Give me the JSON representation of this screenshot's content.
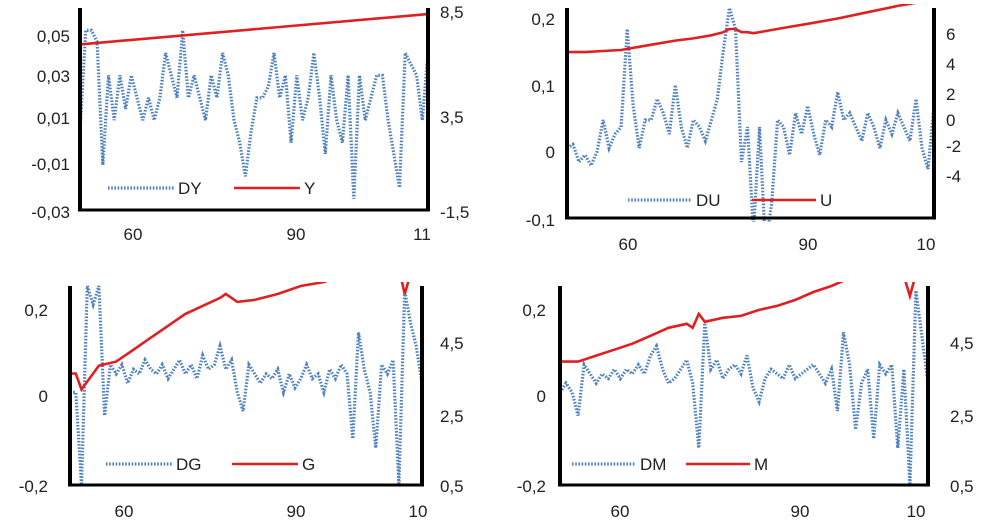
{
  "chart_data": [
    {
      "type": "line",
      "x_ticks": [
        "60",
        "90",
        "11"
      ],
      "x_range": [
        1950,
        2011
      ],
      "y_left_ticks": [
        "0,05",
        "0,03",
        "0,01",
        "-0,01",
        "-0,03"
      ],
      "y_left_range": [
        -0.03,
        0.06
      ],
      "y_right_ticks": [
        "8,5",
        "3,5",
        "-1,5"
      ],
      "y_right_range": [
        -1.5,
        8.5
      ],
      "legend": [
        "DY",
        "Y"
      ],
      "series": [
        {
          "name": "DY",
          "axis": "left",
          "style": "dotted",
          "color": "#4f81bd",
          "x": [
            1950,
            1951,
            1952,
            1953,
            1954,
            1955,
            1956,
            1957,
            1958,
            1959,
            1960,
            1961,
            1962,
            1963,
            1964,
            1965,
            1966,
            1967,
            1968,
            1969,
            1970,
            1971,
            1972,
            1973,
            1974,
            1975,
            1976,
            1977,
            1978,
            1979,
            1980,
            1981,
            1982,
            1983,
            1984,
            1985,
            1986,
            1987,
            1988,
            1989,
            1990,
            1991,
            1992,
            1993,
            1994,
            1995,
            1996,
            1997,
            1998,
            1999,
            2000,
            2001,
            2002,
            2003,
            2004,
            2005,
            2006,
            2007,
            2008,
            2009,
            2010,
            2011
          ],
          "y": [
            0.005,
            0.05,
            0.05,
            0.045,
            -0.01,
            0.03,
            0.01,
            0.03,
            0.015,
            0.03,
            0.02,
            0.01,
            0.02,
            0.01,
            0.02,
            0.04,
            0.03,
            0.02,
            0.05,
            0.02,
            0.03,
            0.02,
            0.01,
            0.03,
            0.02,
            0.04,
            0.03,
            0.01,
            0.0,
            -0.015,
            0.005,
            0.02,
            0.02,
            0.025,
            0.04,
            0.02,
            0.03,
            0.0,
            0.03,
            0.01,
            0.02,
            0.04,
            0.02,
            -0.005,
            0.03,
            0.01,
            0.0,
            0.03,
            -0.025,
            0.03,
            0.01,
            0.02,
            0.03,
            0.03,
            0.01,
            -0.005,
            -0.02,
            0.04,
            0.035,
            0.03,
            0.01,
            0.04
          ]
        },
        {
          "name": "Y",
          "axis": "right",
          "style": "solid",
          "color": "#e02020",
          "x": [
            1950,
            2011
          ],
          "y": [
            6.7,
            8.2
          ]
        }
      ]
    },
    {
      "type": "line",
      "x_ticks": [
        "60",
        "90",
        "10"
      ],
      "x_range": [
        1950,
        2011
      ],
      "y_left_ticks": [
        "0,2",
        "0,1",
        "0",
        "-0,1"
      ],
      "y_left_range": [
        -0.1,
        0.2
      ],
      "y_right_ticks": [
        "6",
        "4",
        "2",
        "0",
        "-2",
        "-4"
      ],
      "y_right_range": [
        -4,
        6
      ],
      "legend": [
        "DU",
        "U"
      ],
      "series": [
        {
          "name": "DU",
          "axis": "left",
          "style": "dotted",
          "color": "#4f81bd",
          "x": [
            1950,
            1951,
            1952,
            1953,
            1954,
            1955,
            1956,
            1957,
            1958,
            1959,
            1960,
            1961,
            1962,
            1963,
            1964,
            1965,
            1966,
            1967,
            1968,
            1969,
            1970,
            1971,
            1972,
            1973,
            1974,
            1975,
            1976,
            1977,
            1978,
            1979,
            1980,
            1981,
            1982,
            1983,
            1984,
            1985,
            1986,
            1987,
            1988,
            1989,
            1990,
            1991,
            1992,
            1993,
            1994,
            1995,
            1996,
            1997,
            1998,
            1999,
            2000,
            2001,
            2002,
            2003,
            2004,
            2005,
            2006,
            2007,
            2008,
            2009,
            2010,
            2011
          ],
          "y": [
            0.0,
            0.005,
            -0.02,
            -0.01,
            -0.025,
            -0.005,
            0.04,
            0.0,
            0.02,
            0.03,
            0.17,
            0.06,
            0.0,
            0.04,
            0.04,
            0.07,
            0.05,
            0.02,
            0.09,
            0.03,
            0.0,
            0.04,
            0.03,
            0.01,
            0.04,
            0.07,
            0.14,
            0.2,
            0.17,
            -0.02,
            0.03,
            -0.12,
            0.03,
            -0.14,
            -0.08,
            0.04,
            0.03,
            -0.01,
            0.05,
            0.02,
            0.06,
            0.02,
            -0.01,
            0.04,
            0.03,
            0.08,
            0.04,
            0.05,
            0.03,
            0.01,
            0.05,
            0.03,
            0.0,
            0.04,
            0.02,
            0.05,
            0.03,
            0.01,
            0.07,
            0.0,
            -0.03,
            0.06
          ]
        },
        {
          "name": "U",
          "axis": "right",
          "style": "solid",
          "color": "#e02020",
          "x": [
            1950,
            1953,
            1956,
            1959,
            1962,
            1965,
            1968,
            1971,
            1974,
            1976,
            1977,
            1978,
            1979,
            1980,
            1981,
            1983,
            1986,
            1990,
            1995,
            2000,
            2005,
            2011
          ],
          "y": [
            3.9,
            3.9,
            3.95,
            4.0,
            4.15,
            4.3,
            4.45,
            4.55,
            4.7,
            4.85,
            5.0,
            5.0,
            4.85,
            4.85,
            4.8,
            4.9,
            5.05,
            5.25,
            5.5,
            5.8,
            6.1,
            6.4
          ]
        }
      ]
    },
    {
      "type": "line",
      "x_ticks": [
        "60",
        "90",
        "10"
      ],
      "x_range": [
        1950,
        2011
      ],
      "y_left_ticks": [
        "0,2",
        "0",
        "-0,2"
      ],
      "y_left_range": [
        -0.2,
        0.23
      ],
      "y_right_ticks": [
        "4,5",
        "2,5",
        "0,5"
      ],
      "y_right_range": [
        0.5,
        5.5
      ],
      "legend": [
        "DG",
        "G"
      ],
      "series": [
        {
          "name": "DG",
          "axis": "left",
          "style": "dotted",
          "color": "#4f81bd",
          "x": [
            1950,
            1951,
            1952,
            1953,
            1954,
            1955,
            1956,
            1957,
            1958,
            1959,
            1960,
            1961,
            1962,
            1963,
            1964,
            1965,
            1966,
            1967,
            1968,
            1969,
            1970,
            1971,
            1972,
            1973,
            1974,
            1975,
            1976,
            1977,
            1978,
            1979,
            1980,
            1981,
            1982,
            1983,
            1984,
            1985,
            1986,
            1987,
            1988,
            1989,
            1990,
            1991,
            1992,
            1993,
            1994,
            1995,
            1996,
            1997,
            1998,
            1999,
            2000,
            2001,
            2002,
            2003,
            2004,
            2005,
            2006,
            2007,
            2008,
            2009,
            2010,
            2011
          ],
          "y": [
            0.0,
            0.0,
            -0.2,
            0.23,
            0.19,
            0.23,
            -0.05,
            0.06,
            0.04,
            0.06,
            0.02,
            0.05,
            0.04,
            0.07,
            0.05,
            0.04,
            0.06,
            0.03,
            0.05,
            0.07,
            0.04,
            0.06,
            0.03,
            0.08,
            0.05,
            0.06,
            0.1,
            0.05,
            0.07,
            0.0,
            -0.04,
            0.06,
            0.04,
            0.02,
            0.04,
            0.03,
            0.05,
            0.0,
            0.04,
            0.01,
            0.03,
            0.06,
            0.03,
            0.04,
            0.0,
            0.05,
            0.03,
            0.06,
            0.04,
            -0.1,
            0.13,
            0.05,
            0.0,
            -0.12,
            0.06,
            0.04,
            0.07,
            -0.2,
            0.22,
            0.15,
            0.1,
            0.02
          ]
        },
        {
          "name": "G",
          "axis": "right",
          "style": "solid",
          "color": "#e02020",
          "x": [
            1950,
            1951,
            1952,
            1953,
            1955,
            1958,
            1961,
            1964,
            1967,
            1970,
            1973,
            1976,
            1977,
            1978,
            1979,
            1982,
            1986,
            1990,
            1994,
            1998,
            2000,
            2002,
            2005,
            2007,
            2008,
            2009,
            2011
          ],
          "y": [
            3.3,
            3.3,
            2.9,
            3.1,
            3.5,
            3.6,
            3.9,
            4.2,
            4.5,
            4.8,
            5.0,
            5.2,
            5.3,
            5.2,
            5.1,
            5.15,
            5.3,
            5.5,
            5.6,
            5.8,
            6.0,
            5.9,
            6.0,
            5.95,
            5.3,
            5.8,
            6.1
          ]
        }
      ]
    },
    {
      "type": "line",
      "x_ticks": [
        "60",
        "90",
        "10"
      ],
      "x_range": [
        1950,
        2011
      ],
      "y_left_ticks": [
        "0,2",
        "0",
        "-0,2"
      ],
      "y_left_range": [
        -0.2,
        0.23
      ],
      "y_right_ticks": [
        "4,5",
        "2,5",
        "0,5"
      ],
      "y_right_range": [
        0.5,
        5.5
      ],
      "legend": [
        "DM",
        "M"
      ],
      "series": [
        {
          "name": "DM",
          "axis": "left",
          "style": "dotted",
          "color": "#4f81bd",
          "x": [
            1950,
            1951,
            1952,
            1953,
            1954,
            1955,
            1956,
            1957,
            1958,
            1959,
            1960,
            1961,
            1962,
            1963,
            1964,
            1965,
            1966,
            1967,
            1968,
            1969,
            1970,
            1971,
            1972,
            1973,
            1974,
            1975,
            1976,
            1977,
            1978,
            1979,
            1980,
            1981,
            1982,
            1983,
            1984,
            1985,
            1986,
            1987,
            1988,
            1989,
            1990,
            1991,
            1992,
            1993,
            1994,
            1995,
            1996,
            1997,
            1998,
            1999,
            2000,
            2001,
            2002,
            2003,
            2004,
            2005,
            2006,
            2007,
            2008,
            2009,
            2010,
            2011
          ],
          "y": [
            0.0,
            0.02,
            0.0,
            -0.05,
            0.06,
            0.04,
            0.02,
            0.04,
            0.03,
            0.05,
            0.03,
            0.05,
            0.04,
            0.06,
            0.04,
            0.08,
            0.1,
            0.05,
            0.02,
            0.03,
            0.05,
            0.07,
            0.02,
            -0.12,
            0.15,
            0.05,
            0.07,
            0.03,
            0.05,
            0.06,
            0.04,
            0.08,
            0.01,
            -0.02,
            0.03,
            0.05,
            0.04,
            0.03,
            0.06,
            0.03,
            0.04,
            0.05,
            0.06,
            0.04,
            0.02,
            0.05,
            -0.04,
            0.13,
            0.06,
            -0.08,
            0.02,
            0.05,
            -0.1,
            0.06,
            0.04,
            0.06,
            -0.12,
            0.05,
            -0.2,
            0.22,
            0.12,
            0.02
          ]
        },
        {
          "name": "M",
          "axis": "right",
          "style": "solid",
          "color": "#e02020",
          "x": [
            1950,
            1953,
            1956,
            1959,
            1962,
            1965,
            1968,
            1971,
            1972,
            1973,
            1974,
            1977,
            1980,
            1983,
            1986,
            1989,
            1992,
            1995,
            1998,
            2000,
            2001,
            2003,
            2005,
            2007,
            2008,
            2009,
            2011
          ],
          "y": [
            3.6,
            3.6,
            3.75,
            3.9,
            4.05,
            4.25,
            4.45,
            4.55,
            4.45,
            4.8,
            4.6,
            4.7,
            4.75,
            4.9,
            5.0,
            5.15,
            5.35,
            5.5,
            5.7,
            5.85,
            5.65,
            5.7,
            5.8,
            5.75,
            5.25,
            5.8,
            6.0
          ]
        }
      ]
    }
  ]
}
